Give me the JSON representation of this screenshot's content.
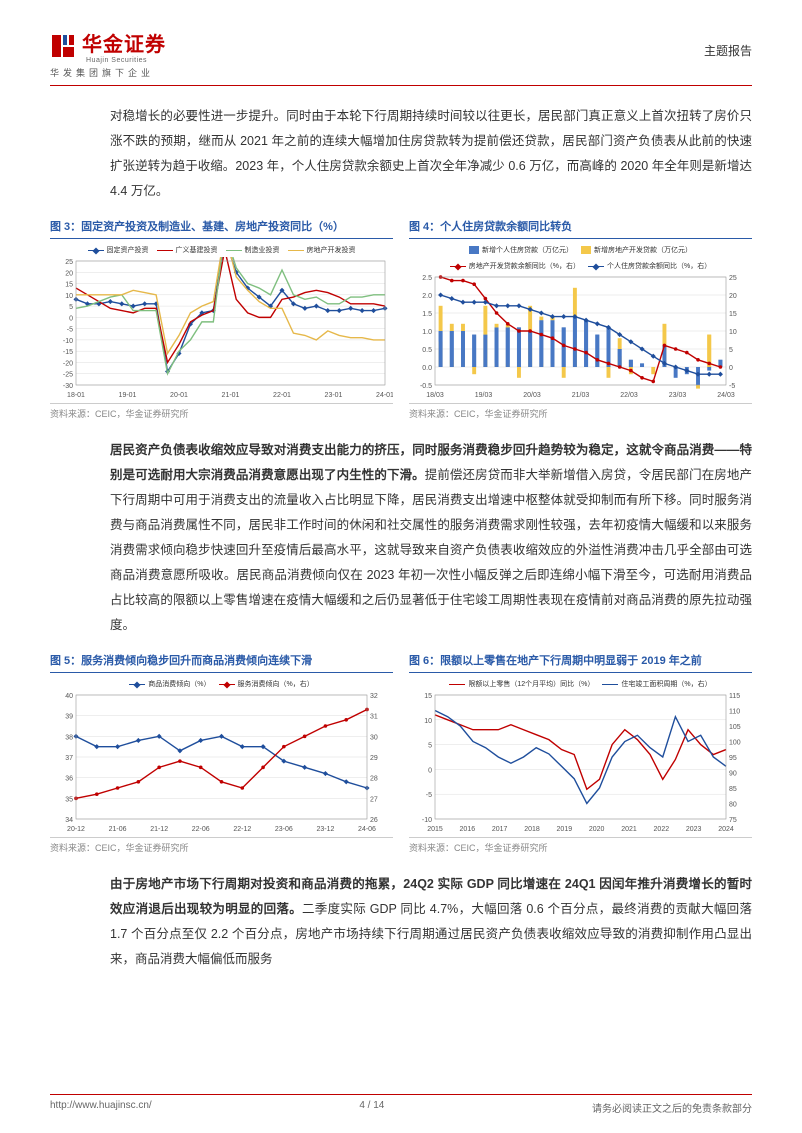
{
  "header": {
    "logo_cn": "华金证券",
    "logo_en": "Huajin Securities",
    "logo_sub": "华发集团旗下企业",
    "report_type": "主题报告"
  },
  "para1": "对稳增长的必要性进一步提升。同时由于本轮下行周期持续时间较以往更长，居民部门真正意义上首次扭转了房价只涨不跌的预期，继而从 2021 年之前的连续大幅增加住房贷款转为提前偿还贷款，居民部门资产负债表从此前的快速扩张逆转为趋于收缩。2023 年，个人住房贷款余额史上首次全年净减少 0.6 万亿，而高峰的 2020 年全年则是新增达 4.4 万亿。",
  "para2_bold": "居民资产负债表收缩效应导致对消费支出能力的挤压，同时服务消费稳步回升趋势较为稳定，这就令商品消费——特别是可选耐用大宗消费品消费意愿出现了内生性的下滑。",
  "para2_rest": "提前偿还房贷而非大举新增借入房贷，令居民部门在房地产下行周期中可用于消费支出的流量收入占比明显下降，居民消费支出增速中枢整体就受抑制而有所下移。同时服务消费与商品消费属性不同，居民非工作时间的休闲和社交属性的服务消费需求刚性较强，去年初疫情大幅缓和以来服务消费需求倾向稳步快速回升至疫情后最高水平，这就导致来自资产负债表收缩效应的外溢性消费冲击几乎全部由可选商品消费意愿所吸收。居民商品消费倾向仅在 2023 年初一次性小幅反弹之后即连绵小幅下滑至今，可选耐用消费品占比较高的限额以上零售增速在疫情大幅缓和之后仍显著低于住宅竣工周期性表现在疫情前对商品消费的原先拉动强度。",
  "para3_bold": "由于房地产市场下行周期对投资和商品消费的拖累，24Q2 实际 GDP 同比增速在 24Q1 因闰年推升消费增长的暂时效应消退后出现较为明显的回落。",
  "para3_rest": "二季度实际 GDP 同比 4.7%，大幅回落 0.6 个百分点，最终消费的贡献大幅回落 1.7 个百分点至仅 2.2 个百分点，房地产市场持续下行周期通过居民资产负债表收缩效应导致的消费抑制作用凸显出来，商品消费大幅偏低而服务",
  "chart3": {
    "title": "图 3：固定资产投资及制造业、基建、房地产投资同比（%）",
    "type": "line",
    "source": "资料来源：CEIC，华金证券研究所",
    "x_labels": [
      "18-01",
      "19-01",
      "20-01",
      "21-01",
      "22-01",
      "23-01",
      "24-01"
    ],
    "y_min": -30,
    "y_max": 25,
    "y_step": 5,
    "series": [
      {
        "name": "固定资产投资",
        "color": "#1f4e9c",
        "dash": "0",
        "marker": true,
        "data": [
          8,
          6,
          6,
          7,
          6,
          5,
          6,
          6,
          -24,
          -16,
          -3,
          2,
          3,
          35,
          20,
          13,
          9,
          5,
          12,
          6,
          4,
          5,
          3,
          3,
          4,
          3,
          3,
          4
        ]
      },
      {
        "name": "广义基建投资",
        "color": "#c00000",
        "dash": "0",
        "marker": false,
        "data": [
          13,
          10,
          7,
          4,
          3,
          2,
          4,
          4,
          -20,
          -12,
          -2,
          1,
          3,
          30,
          8,
          2,
          0,
          0,
          8,
          9,
          11,
          12,
          11,
          9,
          6,
          6,
          6,
          5
        ]
      },
      {
        "name": "制造业投资",
        "color": "#7fbf7f",
        "dash": "0",
        "marker": false,
        "data": [
          4,
          5,
          7,
          9,
          10,
          3,
          3,
          3,
          -25,
          -15,
          -10,
          -2,
          -2,
          38,
          22,
          15,
          13,
          10,
          21,
          10,
          8,
          9,
          6,
          6,
          9,
          9,
          10,
          10
        ]
      },
      {
        "name": "房地产开发投资",
        "color": "#e6b84a",
        "dash": "0",
        "marker": false,
        "data": [
          10,
          10,
          10,
          10,
          10,
          12,
          11,
          10,
          -16,
          -8,
          2,
          5,
          7,
          38,
          18,
          12,
          7,
          4,
          4,
          -7,
          -8,
          -10,
          -6,
          -8,
          -9,
          -9,
          -10,
          -10
        ]
      }
    ]
  },
  "chart4": {
    "title": "图 4：个人住房贷款余额同比转负",
    "type": "combo",
    "source": "资料来源：CEIC，华金证券研究所",
    "x_labels": [
      "18/03",
      "19/03",
      "20/03",
      "21/03",
      "22/03",
      "23/03",
      "24/03"
    ],
    "y_left_min": -0.5,
    "y_left_max": 2.5,
    "y_left_step": 0.5,
    "y_right_min": -5,
    "y_right_max": 25,
    "y_right_step": 5,
    "bars": [
      {
        "name": "新增个人住房贷款（万亿元）",
        "color": "#4878c4",
        "data": [
          1.0,
          1.0,
          1.0,
          0.9,
          0.9,
          1.1,
          1.1,
          1.1,
          1.0,
          1.3,
          1.3,
          1.1,
          1.4,
          1.3,
          0.9,
          1.1,
          0.5,
          0.2,
          0.1,
          0.0,
          0.6,
          -0.3,
          -0.2,
          -0.5,
          -0.1,
          0.2
        ]
      },
      {
        "name": "新增房地产开发贷款（万亿元）",
        "color": "#f4c84a",
        "data": [
          0.7,
          0.2,
          0.2,
          -0.2,
          0.8,
          0.1,
          0.1,
          -0.3,
          0.7,
          0.1,
          0.1,
          -0.3,
          0.8,
          0.0,
          0.0,
          -0.3,
          0.3,
          -0.2,
          0.0,
          -0.2,
          0.6,
          0.0,
          0.0,
          -0.1,
          0.9,
          0.0
        ]
      }
    ],
    "lines": [
      {
        "name": "房地产开发贷款余额同比（%，右）",
        "color": "#c00000",
        "marker": "circle",
        "data": [
          25,
          24,
          24,
          23,
          19,
          15,
          12,
          10,
          10,
          9,
          8,
          6,
          5,
          4,
          2,
          1,
          0,
          -1,
          -3,
          -4,
          6,
          5,
          4,
          2,
          1,
          0
        ]
      },
      {
        "name": "个人住房贷款余额同比（%，右）",
        "color": "#1f4e9c",
        "marker": "diamond",
        "data": [
          20,
          19,
          18,
          18,
          18,
          17,
          17,
          17,
          16,
          15,
          14,
          14,
          14,
          13,
          12,
          11,
          9,
          7,
          5,
          3,
          1,
          0,
          -1,
          -2,
          -2,
          -2
        ]
      }
    ]
  },
  "chart5": {
    "title": "图 5：服务消费倾向稳步回升而商品消费倾向连续下滑",
    "type": "line",
    "source": "资料来源：CEIC，华金证券研究所",
    "x_labels": [
      "20-12",
      "21-06",
      "21-12",
      "22-06",
      "22-12",
      "23-06",
      "23-12",
      "24-06"
    ],
    "y_left_min": 34,
    "y_left_max": 40,
    "y_left_step": 1,
    "y_right_min": 26,
    "y_right_max": 32,
    "y_right_step": 1,
    "series": [
      {
        "name": "商品消费倾向（%）",
        "color": "#1f4e9c",
        "axis": "left",
        "marker": "diamond",
        "data": [
          38,
          37.5,
          37.5,
          37.8,
          38,
          37.3,
          37.8,
          38,
          37.5,
          37.5,
          36.8,
          36.5,
          36.2,
          35.8,
          35.5
        ]
      },
      {
        "name": "服务消费倾向（%，右）",
        "color": "#c00000",
        "axis": "right",
        "marker": "circle",
        "data": [
          27,
          27.2,
          27.5,
          27.8,
          28.5,
          28.8,
          28.5,
          27.8,
          27.5,
          28.5,
          29.5,
          30,
          30.5,
          30.8,
          31.3
        ]
      }
    ]
  },
  "chart6": {
    "title": "图 6：限额以上零售在地产下行周期中明显弱于 2019 年之前",
    "type": "line",
    "source": "资料来源：CEIC，华金证券研究所",
    "x_labels": [
      "2015",
      "2016",
      "2017",
      "2018",
      "2019",
      "2020",
      "2021",
      "2022",
      "2023",
      "2024"
    ],
    "y_left_min": -10,
    "y_left_max": 15,
    "y_left_step": 5,
    "y_right_min": 75,
    "y_right_max": 115,
    "y_right_step": 5,
    "series": [
      {
        "name": "限额以上零售（12个月平均）同比（%）",
        "color": "#c00000",
        "axis": "left",
        "marker": false,
        "data": [
          11,
          10,
          9,
          8,
          8,
          8,
          9,
          8,
          7,
          6,
          4,
          3,
          -4,
          -2,
          5,
          8,
          6,
          3,
          -2,
          2,
          8,
          5,
          3,
          4
        ]
      },
      {
        "name": "住宅竣工面积周期（%，右）",
        "color": "#1f4e9c",
        "axis": "right",
        "marker": false,
        "data": [
          110,
          108,
          105,
          100,
          98,
          95,
          93,
          95,
          98,
          96,
          92,
          88,
          80,
          85,
          95,
          100,
          102,
          98,
          95,
          108,
          100,
          102,
          95,
          92
        ]
      }
    ]
  },
  "footer": {
    "url": "http://www.huajinsc.cn/",
    "page": "4 / 14",
    "disclaimer": "请务必阅读正文之后的免责条款部分"
  },
  "colors": {
    "brand": "#c00000",
    "axis": "#888888",
    "grid": "#dddddd",
    "title_blue": "#2a5aa8"
  }
}
